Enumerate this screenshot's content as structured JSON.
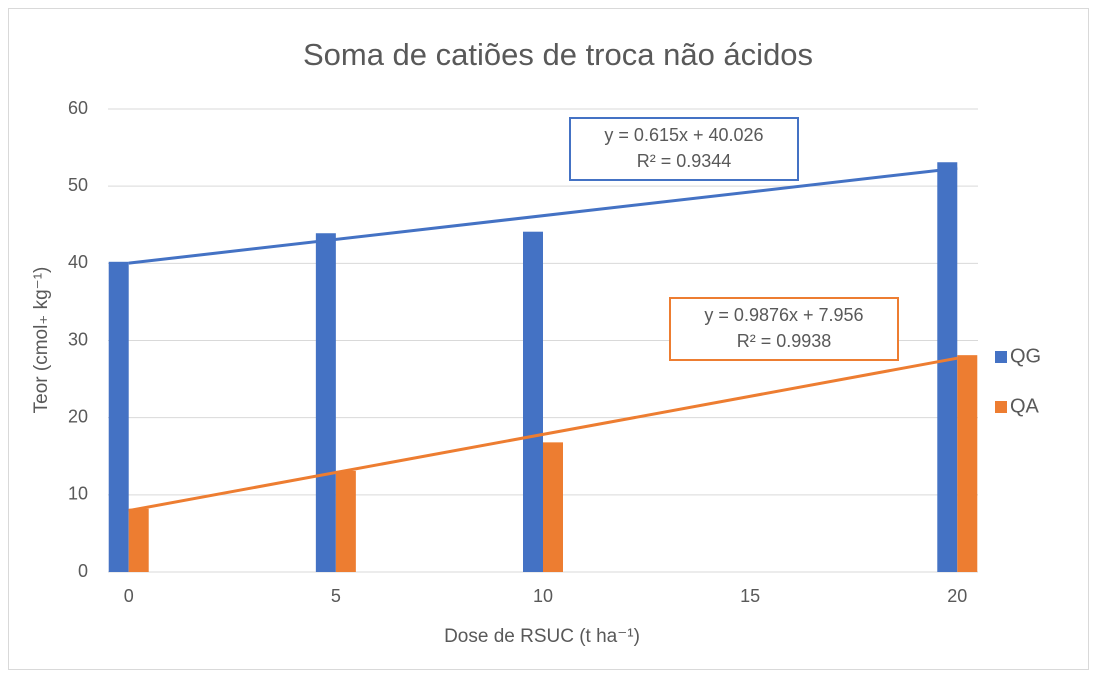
{
  "chart_data": {
    "type": "bar",
    "title": "Soma de catiões de troca não ácidos",
    "xlabel": "Dose de RSUC (t ha⁻¹)",
    "ylabel": "Teor (cmol₊ kg⁻¹)",
    "x": [
      0,
      5,
      10,
      20
    ],
    "series": [
      {
        "name": "QG",
        "color": "#4472c4",
        "values": [
          40.2,
          43.9,
          44.1,
          53.1
        ],
        "trendline": {
          "equation": "y = 0.615x + 40.026",
          "r2": "R² = 0.9344",
          "slope": 0.615,
          "intercept": 40.026
        }
      },
      {
        "name": "QA",
        "color": "#ed7d31",
        "values": [
          8.2,
          13.1,
          16.8,
          28.1
        ],
        "trendline": {
          "equation": "y = 0.9876x + 7.956",
          "r2": "R² = 0.9938",
          "slope": 0.9876,
          "intercept": 7.956
        }
      }
    ],
    "xlim": [
      -0.5,
      20.5
    ],
    "xticks": [
      0,
      5,
      10,
      15,
      20
    ],
    "ylim": [
      0,
      60
    ],
    "yticks": [
      0,
      10,
      20,
      30,
      40,
      50,
      60
    ],
    "grid": true,
    "legend": "right"
  }
}
